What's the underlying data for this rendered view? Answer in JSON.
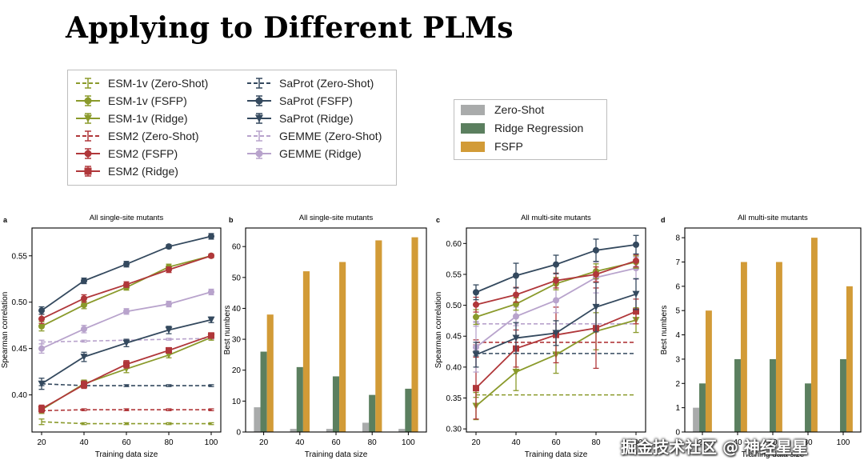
{
  "slide": {
    "title": "Applying to Different PLMs",
    "watermark": "掘金技术社区 @ 神经星星"
  },
  "legend_main": {
    "items": [
      {
        "label": "ESM-1v (Zero-Shot)",
        "color": "#8a9a2b",
        "dashed": true,
        "marker": "none"
      },
      {
        "label": "ESM-1v (FSFP)",
        "color": "#8a9a2b",
        "dashed": false,
        "marker": "circle"
      },
      {
        "label": "ESM-1v (Ridge)",
        "color": "#8a9a2b",
        "dashed": false,
        "marker": "triangle"
      },
      {
        "label": "ESM2 (Zero-Shot)",
        "color": "#b0373a",
        "dashed": true,
        "marker": "none"
      },
      {
        "label": "ESM2 (FSFP)",
        "color": "#b0373a",
        "dashed": false,
        "marker": "circle"
      },
      {
        "label": "ESM2 (Ridge)",
        "color": "#b0373a",
        "dashed": false,
        "marker": "square"
      },
      {
        "label": "SaProt (Zero-Shot)",
        "color": "#34495e",
        "dashed": true,
        "marker": "none"
      },
      {
        "label": "SaProt (FSFP)",
        "color": "#34495e",
        "dashed": false,
        "marker": "circle"
      },
      {
        "label": "SaProt (Ridge)",
        "color": "#34495e",
        "dashed": false,
        "marker": "triangle"
      },
      {
        "label": "GEMME (Zero-Shot)",
        "color": "#b8a3cc",
        "dashed": true,
        "marker": "none"
      },
      {
        "label": "GEMME (Ridge)",
        "color": "#b8a3cc",
        "dashed": false,
        "marker": "circle"
      }
    ]
  },
  "legend_bars": {
    "items": [
      {
        "label": "Zero-Shot",
        "color": "#a9abab"
      },
      {
        "label": "Ridge Regression",
        "color": "#5b7f5f"
      },
      {
        "label": "FSFP",
        "color": "#d29b37"
      }
    ]
  },
  "chart_data": [
    {
      "panel": "a",
      "type": "line",
      "title": "All single-site mutants",
      "xlabel": "Training data size",
      "ylabel": "Spearman correlation",
      "x": [
        20,
        40,
        60,
        80,
        100
      ],
      "ylim": [
        0.36,
        0.58
      ],
      "yticks": [
        0.4,
        0.45,
        0.5,
        0.55
      ],
      "ytick_labels": [
        "0.40",
        "0.45",
        "0.50",
        "0.55"
      ],
      "series": [
        {
          "name": "ESM-1v (Zero-Shot)",
          "color": "#8a9a2b",
          "dashed": true,
          "marker": "none",
          "values": [
            0.371,
            0.369,
            0.369,
            0.369,
            0.369
          ],
          "err": [
            0.003,
            0.001,
            0.001,
            0.001,
            0.001
          ]
        },
        {
          "name": "ESM2 (Zero-Shot)",
          "color": "#b0373a",
          "dashed": true,
          "marker": "none",
          "values": [
            0.383,
            0.384,
            0.384,
            0.384,
            0.384
          ],
          "err": [
            0.002,
            0.001,
            0.001,
            0.001,
            0.001
          ]
        },
        {
          "name": "SaProt (Zero-Shot)",
          "color": "#34495e",
          "dashed": true,
          "marker": "none",
          "values": [
            0.412,
            0.41,
            0.41,
            0.41,
            0.41
          ],
          "err": [
            0.002,
            0.001,
            0.001,
            0.001,
            0.001
          ]
        },
        {
          "name": "GEMME (Zero-Shot)",
          "color": "#b8a3cc",
          "dashed": true,
          "marker": "none",
          "values": [
            0.457,
            0.458,
            0.459,
            0.46,
            0.461
          ],
          "err": [
            0.002,
            0.001,
            0.001,
            0.001,
            0.001
          ]
        },
        {
          "name": "ESM-1v (Ridge)",
          "color": "#8a9a2b",
          "dashed": false,
          "marker": "triangle",
          "values": [
            0.384,
            0.412,
            0.428,
            0.443,
            0.462
          ],
          "err": [
            0.004,
            0.004,
            0.004,
            0.003,
            0.003
          ]
        },
        {
          "name": "ESM2 (Ridge)",
          "color": "#b0373a",
          "dashed": false,
          "marker": "square",
          "values": [
            0.385,
            0.411,
            0.433,
            0.448,
            0.464
          ],
          "err": [
            0.004,
            0.004,
            0.004,
            0.003,
            0.003
          ]
        },
        {
          "name": "SaProt (Ridge)",
          "color": "#34495e",
          "dashed": false,
          "marker": "triangle",
          "values": [
            0.412,
            0.441,
            0.456,
            0.47,
            0.481
          ],
          "err": [
            0.006,
            0.005,
            0.004,
            0.004,
            0.003
          ]
        },
        {
          "name": "GEMME (Ridge)",
          "color": "#b8a3cc",
          "dashed": false,
          "marker": "circle",
          "values": [
            0.45,
            0.471,
            0.49,
            0.498,
            0.511
          ],
          "err": [
            0.005,
            0.004,
            0.003,
            0.003,
            0.003
          ]
        },
        {
          "name": "ESM-1v (FSFP)",
          "color": "#8a9a2b",
          "dashed": false,
          "marker": "circle",
          "values": [
            0.474,
            0.497,
            0.516,
            0.538,
            0.55
          ],
          "err": [
            0.005,
            0.004,
            0.003,
            0.003,
            0.002
          ]
        },
        {
          "name": "ESM2 (FSFP)",
          "color": "#b0373a",
          "dashed": false,
          "marker": "circle",
          "values": [
            0.482,
            0.504,
            0.519,
            0.535,
            0.55
          ],
          "err": [
            0.005,
            0.004,
            0.003,
            0.003,
            0.002
          ]
        },
        {
          "name": "SaProt (FSFP)",
          "color": "#34495e",
          "dashed": false,
          "marker": "circle",
          "values": [
            0.491,
            0.523,
            0.541,
            0.56,
            0.571
          ],
          "err": [
            0.004,
            0.003,
            0.003,
            0.002,
            0.003
          ]
        }
      ]
    },
    {
      "panel": "b",
      "type": "bar",
      "title": "All single-site mutants",
      "xlabel": "Training data size",
      "ylabel": "Best numbers",
      "categories": [
        "20",
        "40",
        "60",
        "80",
        "100"
      ],
      "ylim": [
        0,
        66
      ],
      "yticks": [
        0,
        10,
        20,
        30,
        40,
        50,
        60
      ],
      "ytick_labels": [
        "0",
        "10",
        "20",
        "30",
        "40",
        "50",
        "60"
      ],
      "series": [
        {
          "name": "Zero-Shot",
          "color": "#a9abab",
          "values": [
            8,
            1,
            1,
            3,
            1
          ]
        },
        {
          "name": "Ridge Regression",
          "color": "#5b7f5f",
          "values": [
            26,
            21,
            18,
            12,
            14
          ]
        },
        {
          "name": "FSFP",
          "color": "#d29b37",
          "values": [
            38,
            52,
            55,
            62,
            63
          ]
        }
      ]
    },
    {
      "panel": "c",
      "type": "line",
      "title": "All multi-site mutants",
      "xlabel": "Training data size",
      "ylabel": "Spearman correlation",
      "x": [
        20,
        40,
        60,
        80,
        100
      ],
      "ylim": [
        0.295,
        0.625
      ],
      "yticks": [
        0.3,
        0.35,
        0.4,
        0.45,
        0.5,
        0.55,
        0.6
      ],
      "ytick_labels": [
        "0.30",
        "0.35",
        "0.40",
        "0.45",
        "0.50",
        "0.55",
        "0.60"
      ],
      "series": [
        {
          "name": "ESM-1v (Zero-Shot)",
          "color": "#8a9a2b",
          "dashed": true,
          "marker": "none",
          "values": [
            0.355,
            0.355,
            0.355,
            0.355,
            0.355
          ],
          "err": [
            0.004,
            0,
            0,
            0,
            0
          ]
        },
        {
          "name": "ESM2 (Zero-Shot)",
          "color": "#b0373a",
          "dashed": true,
          "marker": "none",
          "values": [
            0.44,
            0.44,
            0.44,
            0.44,
            0.44
          ],
          "err": [
            0.004,
            0,
            0,
            0,
            0
          ]
        },
        {
          "name": "SaProt (Zero-Shot)",
          "color": "#34495e",
          "dashed": true,
          "marker": "none",
          "values": [
            0.422,
            0.422,
            0.422,
            0.422,
            0.422
          ],
          "err": [
            0.004,
            0,
            0,
            0,
            0
          ]
        },
        {
          "name": "GEMME (Zero-Shot)",
          "color": "#b8a3cc",
          "dashed": true,
          "marker": "none",
          "values": [
            0.47,
            0.47,
            0.47,
            0.47,
            0.47
          ],
          "err": [
            0.004,
            0,
            0,
            0,
            0
          ]
        },
        {
          "name": "ESM-1v (Ridge)",
          "color": "#8a9a2b",
          "dashed": false,
          "marker": "triangle",
          "values": [
            0.337,
            0.392,
            0.42,
            0.458,
            0.476
          ],
          "err": [
            0.022,
            0.03,
            0.03,
            0.03,
            0.02
          ]
        },
        {
          "name": "ESM2 (Ridge)",
          "color": "#b0373a",
          "dashed": false,
          "marker": "square",
          "values": [
            0.366,
            0.43,
            0.452,
            0.463,
            0.49
          ],
          "err": [
            0.05,
            0.03,
            0.045,
            0.065,
            0.02
          ]
        },
        {
          "name": "GEMME (Ridge)",
          "color": "#b8a3cc",
          "dashed": false,
          "marker": "circle",
          "values": [
            0.432,
            0.482,
            0.508,
            0.545,
            0.56
          ],
          "err": [
            0.04,
            0.015,
            0.02,
            0.025,
            0.018
          ]
        },
        {
          "name": "SaProt (Ridge)",
          "color": "#34495e",
          "dashed": false,
          "marker": "triangle",
          "values": [
            0.42,
            0.447,
            0.455,
            0.497,
            0.518
          ],
          "err": [
            0.02,
            0.025,
            0.02,
            0.04,
            0.025
          ]
        },
        {
          "name": "ESM-1v (FSFP)",
          "color": "#8a9a2b",
          "dashed": false,
          "marker": "circle",
          "values": [
            0.481,
            0.502,
            0.535,
            0.555,
            0.57
          ],
          "err": [
            0.012,
            0.01,
            0.01,
            0.012,
            0.01
          ]
        },
        {
          "name": "ESM2 (FSFP)",
          "color": "#b0373a",
          "dashed": false,
          "marker": "circle",
          "values": [
            0.501,
            0.517,
            0.54,
            0.55,
            0.572
          ],
          "err": [
            0.012,
            0.012,
            0.012,
            0.012,
            0.01
          ]
        },
        {
          "name": "SaProt (FSFP)",
          "color": "#34495e",
          "dashed": false,
          "marker": "circle",
          "values": [
            0.521,
            0.548,
            0.566,
            0.589,
            0.598
          ],
          "err": [
            0.012,
            0.02,
            0.015,
            0.018,
            0.015
          ]
        }
      ]
    },
    {
      "panel": "d",
      "type": "bar",
      "title": "All multi-site mutants",
      "xlabel": "Training data size",
      "ylabel": "Best numbers",
      "categories": [
        "20",
        "40",
        "60",
        "80",
        "100"
      ],
      "ylim": [
        0,
        8.4
      ],
      "yticks": [
        0,
        1,
        2,
        3,
        4,
        5,
        6,
        7,
        8
      ],
      "ytick_labels": [
        "0",
        "1",
        "2",
        "3",
        "4",
        "5",
        "6",
        "7",
        "8"
      ],
      "series": [
        {
          "name": "Zero-Shot",
          "color": "#a9abab",
          "values": [
            1,
            0,
            0,
            0,
            0
          ]
        },
        {
          "name": "Ridge Regression",
          "color": "#5b7f5f",
          "values": [
            2,
            3,
            3,
            2,
            3
          ]
        },
        {
          "name": "FSFP",
          "color": "#d29b37",
          "values": [
            5,
            7,
            7,
            8,
            6
          ]
        }
      ]
    }
  ]
}
